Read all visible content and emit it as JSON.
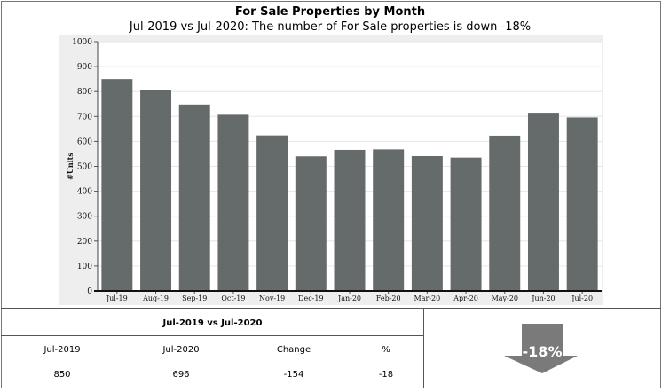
{
  "title": "For Sale Properties by Month",
  "subtitle": "Jul-2019 vs Jul-2020: The number of For Sale properties is down -18%",
  "chart_data": {
    "type": "bar",
    "categories": [
      "Jul-19",
      "Aug-19",
      "Sep-19",
      "Oct-19",
      "Nov-19",
      "Dec-19",
      "Jan-20",
      "Feb-20",
      "Mar-20",
      "Apr-20",
      "May-20",
      "Jun-20",
      "Jul-20"
    ],
    "values": [
      850,
      805,
      748,
      707,
      624,
      540,
      566,
      568,
      541,
      535,
      623,
      715,
      696
    ],
    "ylabel": "#Units",
    "ylim": [
      0,
      1000
    ],
    "yticks": [
      0,
      100,
      200,
      300,
      400,
      500,
      600,
      700,
      800,
      900,
      1000
    ],
    "bar_color": "#656a6a",
    "plot_bg": "#eeeeee",
    "grid": true
  },
  "summary": {
    "title": "Jul-2019 vs Jul-2020",
    "headers": [
      "Jul-2019",
      "Jul-2020",
      "Change",
      "%"
    ],
    "values": [
      "850",
      "696",
      "-154",
      "-18"
    ]
  },
  "indicator": {
    "label": "-18%",
    "direction": "down",
    "color": "#7a7a7a"
  }
}
